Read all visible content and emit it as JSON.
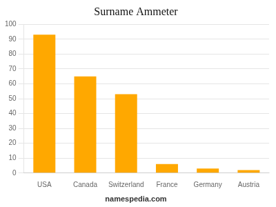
{
  "chart_data": {
    "type": "bar",
    "title": "Surname Ammeter",
    "categories": [
      "USA",
      "Canada",
      "Switzerland",
      "France",
      "Germany",
      "Austria"
    ],
    "values": [
      93,
      65,
      53,
      6,
      3,
      2
    ],
    "color": "#FFA800",
    "ylim": [
      0,
      100
    ],
    "yticks": [
      0,
      10,
      20,
      30,
      40,
      50,
      60,
      70,
      80,
      90,
      100
    ],
    "grid": true,
    "annotations": [
      "namespedia.com"
    ]
  }
}
